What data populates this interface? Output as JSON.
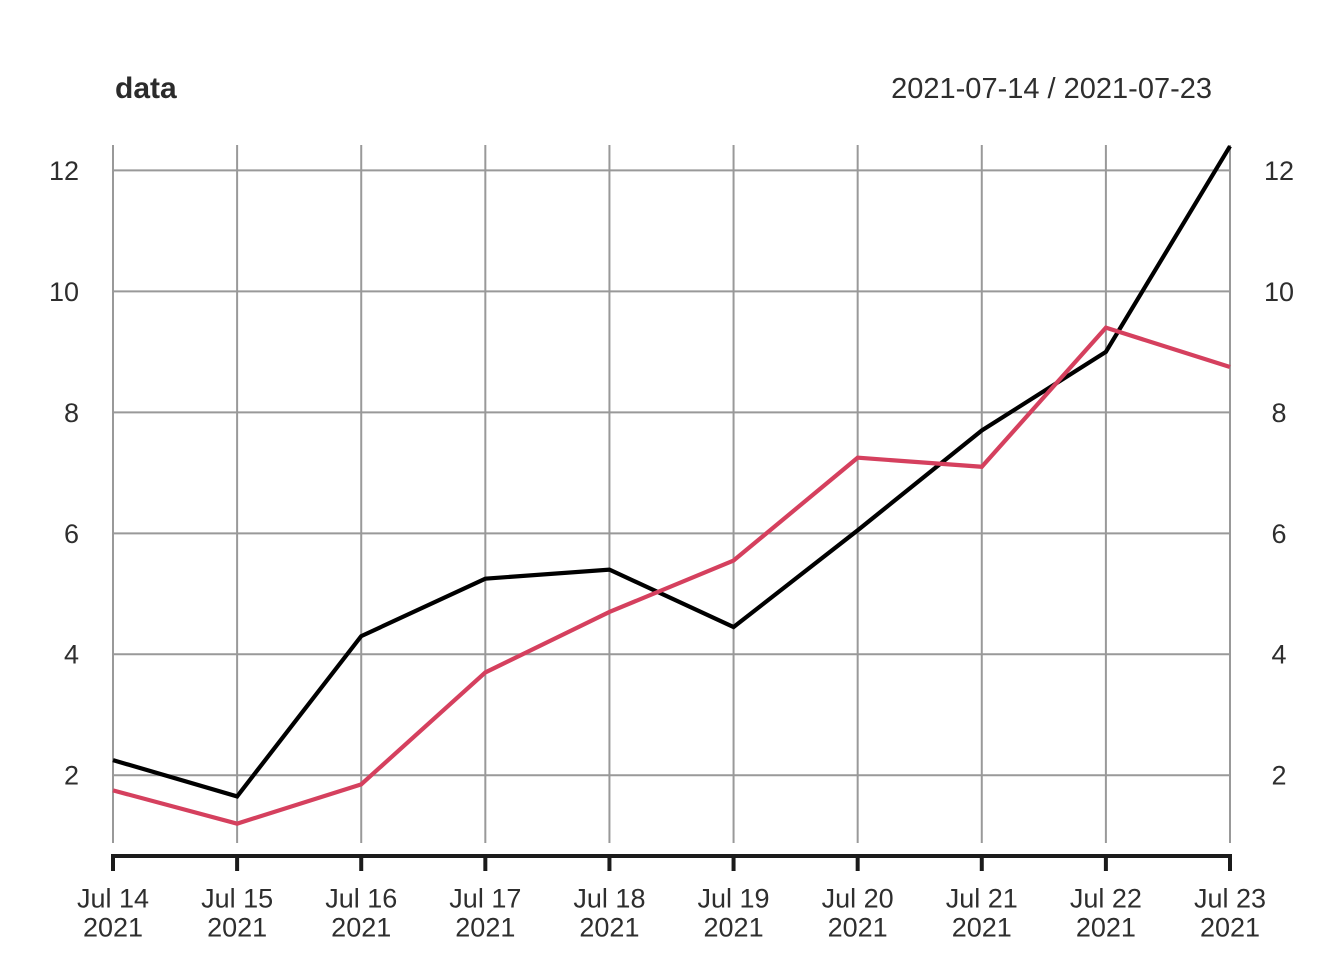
{
  "header": {
    "title": "data",
    "date_range": "2021-07-14 / 2021-07-23"
  },
  "chart_data": {
    "type": "line",
    "title": "data",
    "subtitle": "2021-07-14 / 2021-07-23",
    "x_tick_labels": [
      {
        "top": "Jul 14",
        "bottom": "2021"
      },
      {
        "top": "Jul 15",
        "bottom": "2021"
      },
      {
        "top": "Jul 16",
        "bottom": "2021"
      },
      {
        "top": "Jul 17",
        "bottom": "2021"
      },
      {
        "top": "Jul 18",
        "bottom": "2021"
      },
      {
        "top": "Jul 19",
        "bottom": "2021"
      },
      {
        "top": "Jul 20",
        "bottom": "2021"
      },
      {
        "top": "Jul 21",
        "bottom": "2021"
      },
      {
        "top": "Jul 22",
        "bottom": "2021"
      },
      {
        "top": "Jul 23",
        "bottom": "2021"
      }
    ],
    "y_ticks": [
      2,
      4,
      6,
      8,
      10,
      12
    ],
    "ylim": [
      0.88,
      12.42
    ],
    "grid": true,
    "y_axis_both_sides": true,
    "legend_position": "none",
    "series": [
      {
        "name": "series-black",
        "color": "#000000",
        "values": [
          2.25,
          1.65,
          4.3,
          5.25,
          5.4,
          4.45,
          6.05,
          7.7,
          9.0,
          12.4
        ]
      },
      {
        "name": "series-red",
        "color": "#d5405e",
        "values": [
          1.75,
          1.2,
          1.85,
          3.7,
          4.7,
          5.55,
          7.25,
          7.1,
          9.4,
          8.75
        ]
      }
    ],
    "colors": {
      "grid": "#999999",
      "axis": "#1b1b1b",
      "labels": "#2e2e2e"
    }
  }
}
